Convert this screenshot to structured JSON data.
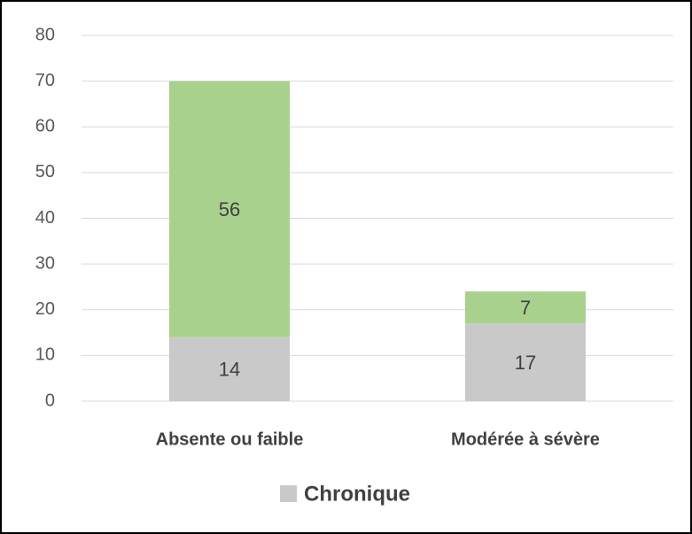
{
  "chart_data": {
    "type": "stacked_bar",
    "categories": [
      "Absente ou faible",
      "Modérée à sévère"
    ],
    "series": [
      {
        "name": "Chronique",
        "color": "#c9c9c9",
        "values": [
          14,
          17
        ]
      },
      {
        "color": "#a9d18e",
        "values": [
          56,
          7
        ]
      }
    ],
    "ylim": [
      0,
      80
    ],
    "yticks": [
      0,
      10,
      20,
      30,
      40,
      50,
      60,
      70,
      80
    ],
    "grid": true,
    "legend": "bottom"
  }
}
